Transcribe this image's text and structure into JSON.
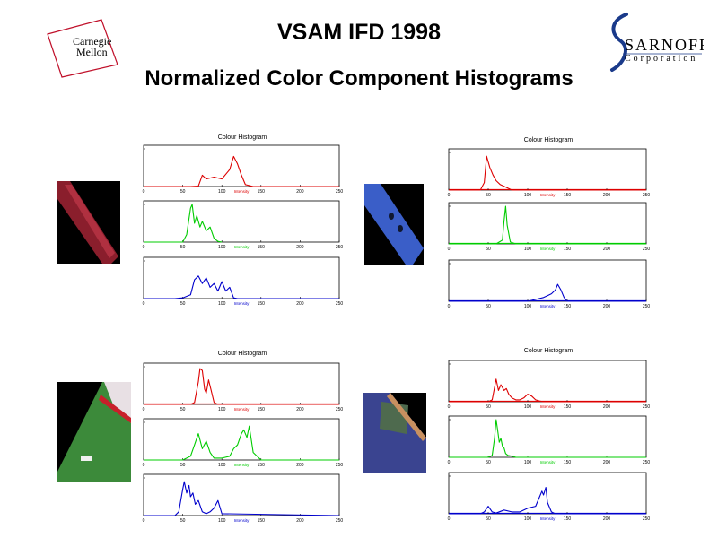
{
  "header": {
    "title": "VSAM IFD 1998",
    "subtitle": "Normalized Color Component Histograms"
  },
  "logos": {
    "left": {
      "line1": "Carnegie",
      "line2": "Mellon",
      "frame_color": "#c0102a"
    },
    "right": {
      "word": "SARNOFF",
      "sub": "Corporation",
      "color": "#1a3a8a"
    }
  },
  "colors": {
    "red": "#dd0000",
    "green": "#00cc00",
    "blue": "#0000cc",
    "axis": "#000000"
  },
  "chart_data": [
    {
      "type": "line",
      "title": "Colour Histogram",
      "xlim": [
        0,
        250
      ],
      "xticks": [
        "0",
        "50",
        "100",
        "150",
        "200",
        "250"
      ],
      "series": [
        {
          "color": "#dd0000",
          "xlabel": "Intensity",
          "x": [
            0,
            60,
            70,
            75,
            80,
            90,
            100,
            110,
            115,
            120,
            125,
            130,
            140,
            150,
            250
          ],
          "y": [
            0,
            0,
            0.01,
            0.3,
            0.2,
            0.25,
            0.2,
            0.45,
            0.8,
            0.6,
            0.3,
            0.05,
            0,
            0,
            0
          ]
        },
        {
          "color": "#00cc00",
          "xlabel": "Intensity",
          "x": [
            0,
            50,
            55,
            60,
            62,
            65,
            68,
            72,
            75,
            80,
            85,
            90,
            95,
            100
          ],
          "y": [
            0,
            0,
            0.2,
            0.9,
            1.0,
            0.5,
            0.7,
            0.4,
            0.55,
            0.3,
            0.4,
            0.1,
            0.02,
            0
          ]
        },
        {
          "color": "#0000cc",
          "xlabel": "Intensity",
          "x": [
            0,
            40,
            50,
            60,
            65,
            70,
            75,
            80,
            85,
            90,
            95,
            100,
            105,
            110,
            115,
            120,
            250
          ],
          "y": [
            0,
            0,
            0.02,
            0.1,
            0.5,
            0.6,
            0.4,
            0.55,
            0.3,
            0.4,
            0.2,
            0.45,
            0.2,
            0.3,
            0.02,
            0,
            0
          ]
        }
      ]
    },
    {
      "type": "line",
      "title": "Colour Histogram",
      "xlim": [
        0,
        250
      ],
      "xticks": [
        "0",
        "50",
        "100",
        "150",
        "200",
        "250"
      ],
      "series": [
        {
          "color": "#dd0000",
          "xlabel": "Intensity",
          "x": [
            0,
            40,
            45,
            48,
            52,
            56,
            60,
            65,
            70,
            75,
            80,
            250
          ],
          "y": [
            0,
            0,
            0.2,
            0.9,
            0.6,
            0.4,
            0.25,
            0.15,
            0.1,
            0.05,
            0,
            0
          ],
          "baseline_color": "#dd0000"
        },
        {
          "color": "#00cc00",
          "xlabel": "Intensity",
          "x": [
            0,
            60,
            68,
            70,
            72,
            74,
            78,
            85,
            250
          ],
          "y": [
            0,
            0,
            0.1,
            0.6,
            1.0,
            0.5,
            0.05,
            0,
            0
          ],
          "baseline_color": "#00cc00"
        },
        {
          "color": "#0000cc",
          "xlabel": "Intensity",
          "x": [
            0,
            100,
            110,
            120,
            125,
            130,
            135,
            138,
            142,
            146,
            150,
            250
          ],
          "y": [
            0,
            0,
            0.05,
            0.1,
            0.15,
            0.2,
            0.3,
            0.45,
            0.3,
            0.1,
            0,
            0
          ],
          "baseline_color": "#0000cc"
        }
      ]
    },
    {
      "type": "line",
      "title": "Colour Histogram",
      "xlim": [
        0,
        250
      ],
      "xticks": [
        "0",
        "50",
        "100",
        "150",
        "200",
        "250"
      ],
      "series": [
        {
          "color": "#dd0000",
          "xlabel": "Intensity",
          "x": [
            0,
            60,
            65,
            70,
            72,
            75,
            78,
            80,
            83,
            86,
            90,
            95,
            250
          ],
          "y": [
            0,
            0,
            0.05,
            0.6,
            0.95,
            0.9,
            0.4,
            0.3,
            0.65,
            0.4,
            0.05,
            0,
            0
          ],
          "baseline_color": "#dd0000"
        },
        {
          "color": "#00cc00",
          "xlabel": "Intensity",
          "x": [
            0,
            50,
            55,
            60,
            65,
            70,
            75,
            80,
            85,
            90,
            100,
            110,
            115,
            120,
            125,
            128,
            132,
            135,
            140,
            150,
            250
          ],
          "y": [
            0,
            0,
            0.05,
            0.1,
            0.4,
            0.7,
            0.3,
            0.5,
            0.2,
            0.05,
            0.05,
            0.1,
            0.3,
            0.4,
            0.7,
            0.8,
            0.6,
            0.9,
            0.2,
            0,
            0
          ]
        },
        {
          "color": "#0000cc",
          "xlabel": "Intensity",
          "x": [
            0,
            40,
            45,
            50,
            52,
            55,
            58,
            60,
            63,
            66,
            70,
            75,
            80,
            85,
            90,
            95,
            100,
            250
          ],
          "y": [
            0,
            0,
            0.1,
            0.7,
            0.9,
            0.6,
            0.8,
            0.5,
            0.6,
            0.3,
            0.4,
            0.1,
            0.05,
            0.1,
            0.2,
            0.4,
            0.05,
            0
          ]
        }
      ]
    },
    {
      "type": "line",
      "title": "Colour Histogram",
      "xlim": [
        0,
        250
      ],
      "xticks": [
        "0",
        "50",
        "100",
        "150",
        "200",
        "250"
      ],
      "series": [
        {
          "color": "#dd0000",
          "xlabel": "Intensity",
          "x": [
            0,
            50,
            55,
            60,
            63,
            66,
            70,
            73,
            76,
            80,
            85,
            90,
            95,
            100,
            105,
            110,
            115,
            120,
            250
          ],
          "y": [
            0,
            0,
            0.05,
            0.6,
            0.3,
            0.45,
            0.3,
            0.35,
            0.2,
            0.1,
            0.05,
            0.05,
            0.1,
            0.2,
            0.15,
            0.05,
            0.02,
            0,
            0
          ],
          "baseline_color": "#dd0000"
        },
        {
          "color": "#00cc00",
          "xlabel": "Intensity",
          "x": [
            0,
            50,
            55,
            58,
            60,
            62,
            64,
            66,
            68,
            70,
            72,
            75,
            80,
            85,
            250
          ],
          "y": [
            0,
            0,
            0.05,
            0.5,
            1.0,
            0.7,
            0.4,
            0.5,
            0.3,
            0.25,
            0.1,
            0.05,
            0.03,
            0,
            0
          ]
        },
        {
          "color": "#0000cc",
          "xlabel": "Intensity",
          "x": [
            0,
            40,
            45,
            50,
            55,
            60,
            70,
            80,
            90,
            100,
            110,
            115,
            118,
            120,
            123,
            125,
            130,
            135,
            250
          ],
          "y": [
            0,
            0,
            0.05,
            0.2,
            0.05,
            0.02,
            0.1,
            0.05,
            0.05,
            0.15,
            0.2,
            0.45,
            0.6,
            0.5,
            0.7,
            0.3,
            0.05,
            0,
            0
          ],
          "baseline_color": "#0000cc"
        }
      ]
    }
  ]
}
